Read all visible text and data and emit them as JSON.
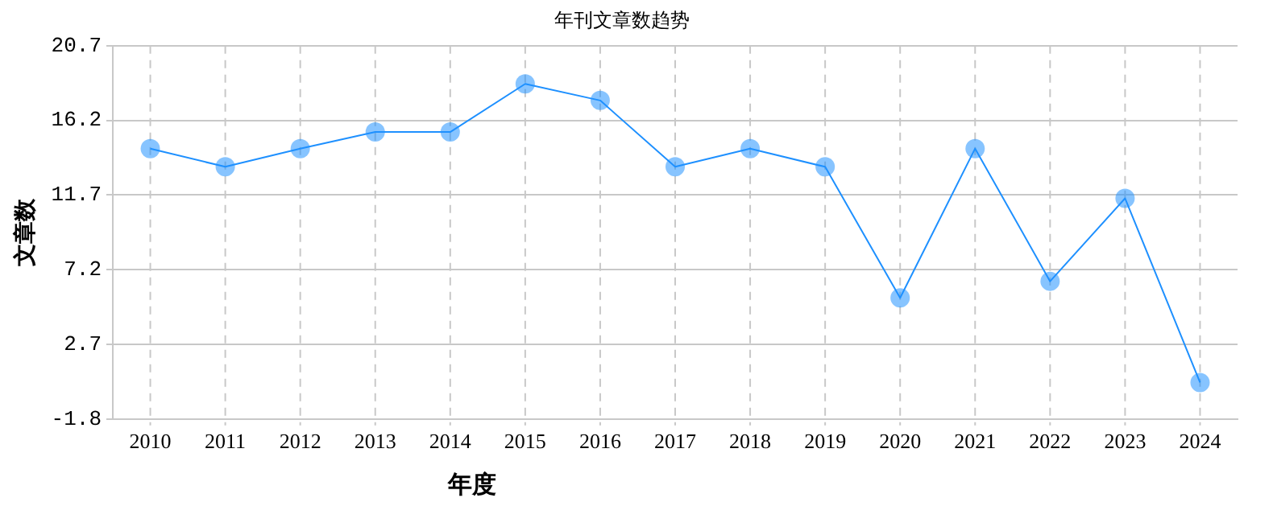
{
  "chart_data": {
    "type": "line",
    "title": "年刊文章数趋势",
    "xlabel": "年度",
    "ylabel": "文章数",
    "categories": [
      "2010",
      "2011",
      "2012",
      "2013",
      "2014",
      "2015",
      "2016",
      "2017",
      "2018",
      "2019",
      "2020",
      "2021",
      "2022",
      "2023",
      "2024"
    ],
    "series": [
      {
        "color": "#1e90ff",
        "values": [
          14.5,
          13.4,
          14.5,
          15.5,
          15.5,
          18.4,
          17.4,
          13.4,
          14.5,
          13.4,
          5.5,
          14.5,
          6.5,
          11.5,
          0.4
        ]
      }
    ],
    "ylim": [
      -1.8,
      20.7
    ],
    "yticks": [
      -1.8,
      2.7,
      7.2,
      11.7,
      16.2,
      20.7
    ],
    "grid": true,
    "marker": "circle",
    "line_style": "solid",
    "legend": false
  }
}
